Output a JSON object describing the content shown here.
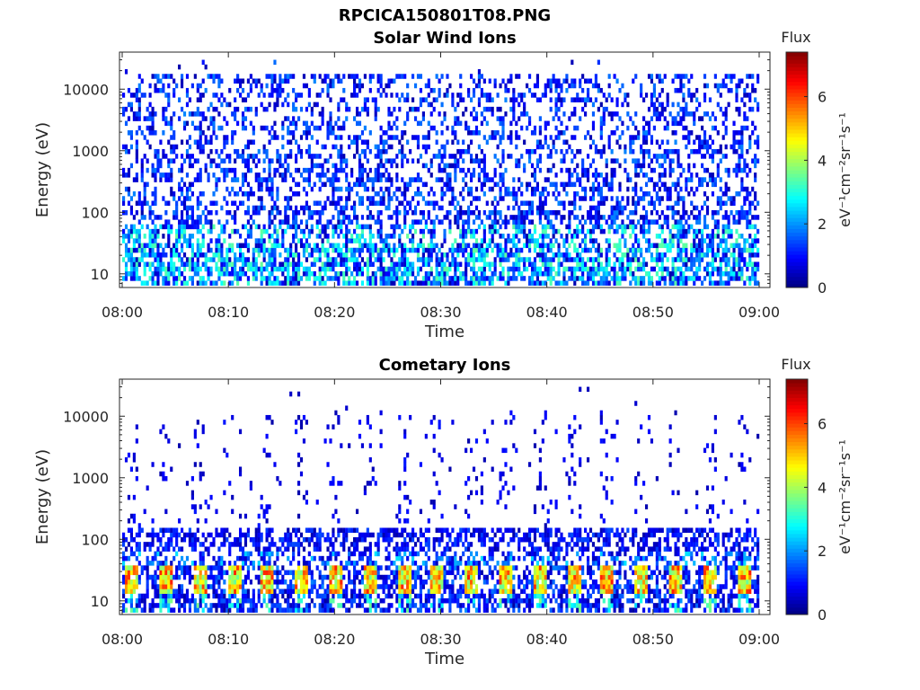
{
  "figure_title": "RPCICA150801T08.PNG",
  "chart_data": [
    {
      "type": "heatmap",
      "title": "Solar Wind Ions",
      "xlabel": "Time",
      "ylabel": "Energy (eV)",
      "x_ticks": [
        "08:00",
        "08:10",
        "08:20",
        "08:30",
        "08:40",
        "08:50",
        "09:00"
      ],
      "x_range": [
        "08:00",
        "09:00"
      ],
      "y_scale": "log",
      "y_ticks": [
        10,
        100,
        1000,
        10000
      ],
      "y_tick_labels": [
        "10",
        "100",
        "1000",
        "10000"
      ],
      "ylim": [
        6,
        40000
      ],
      "colorbar": {
        "title": "Flux",
        "label": "eV⁻¹cm⁻²sr⁻¹s⁻¹",
        "ticks": [
          "0",
          "2",
          "4",
          "6"
        ],
        "range": [
          0,
          7.4
        ],
        "colormap": "jet"
      },
      "pattern": {
        "description_values": "sparse counts across 10-15000 eV, denser at low energies",
        "max_flux_observed": 3.5,
        "upper_cutoff_eV": 15000
      }
    },
    {
      "type": "heatmap",
      "title": "Cometary Ions",
      "xlabel": "Time",
      "ylabel": "Energy (eV)",
      "x_ticks": [
        "08:00",
        "08:10",
        "08:20",
        "08:30",
        "08:40",
        "08:50",
        "09:00"
      ],
      "x_range": [
        "08:00",
        "09:00"
      ],
      "y_scale": "log",
      "y_ticks": [
        10,
        100,
        1000,
        10000
      ],
      "y_tick_labels": [
        "10",
        "100",
        "1000",
        "10000"
      ],
      "ylim": [
        6,
        40000
      ],
      "colorbar": {
        "title": "Flux",
        "label": "eV⁻¹cm⁻²sr⁻¹s⁻¹",
        "ticks": [
          "0",
          "2",
          "4",
          "6"
        ],
        "range": [
          0,
          7.4
        ],
        "colormap": "jet"
      },
      "pattern": {
        "burst_period_min": 3.2,
        "burst_energy_range_eV": [
          12,
          35
        ],
        "burst_peak_flux": 6.3,
        "scattered_band_eV": [
          60,
          130
        ]
      }
    }
  ]
}
